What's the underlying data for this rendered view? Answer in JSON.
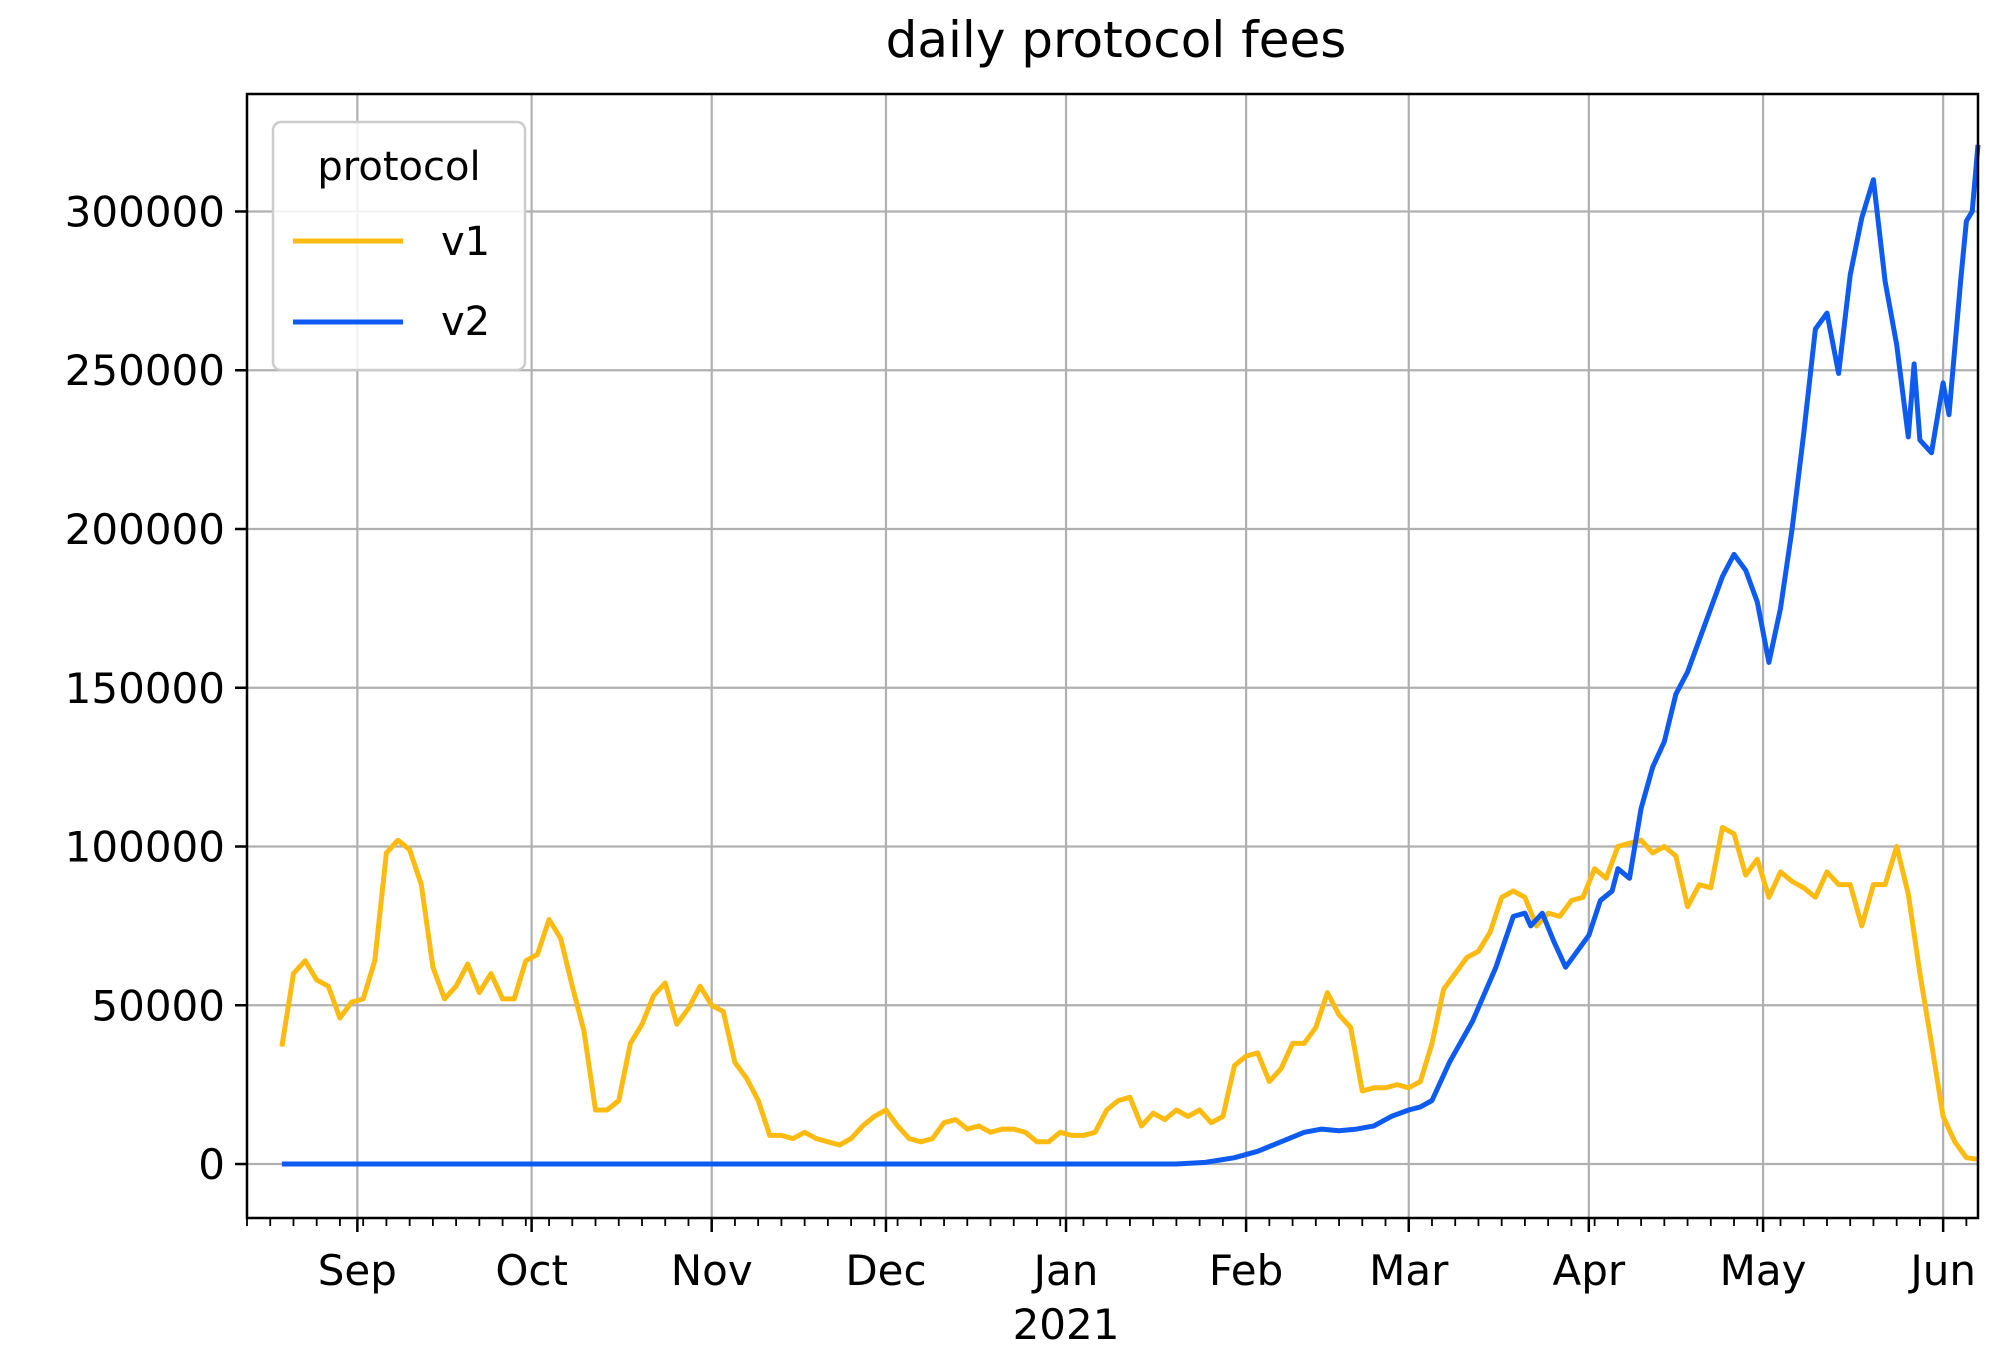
{
  "chart_data": {
    "type": "line",
    "title": "daily protocol fees",
    "xlabel": "",
    "ylabel": "",
    "x_tick_labels": [
      "Sep",
      "Oct",
      "Nov",
      "Dec",
      "Jan",
      "Feb",
      "Mar",
      "Apr",
      "May",
      "Jun"
    ],
    "x_year_label": "2021",
    "x_major_ticks": [
      "2020-09-01",
      "2020-10-01",
      "2020-11-01",
      "2020-12-01",
      "2021-01-01",
      "2021-02-01",
      "2021-03-01",
      "2021-04-01",
      "2021-05-01",
      "2021-06-01"
    ],
    "xlim": [
      "2020-08-13",
      "2021-06-07"
    ],
    "ylim": [
      -17000,
      337000
    ],
    "y_ticks": [
      0,
      50000,
      100000,
      150000,
      200000,
      250000,
      300000
    ],
    "grid": true,
    "legend": {
      "title": "protocol",
      "placement": "top-left"
    },
    "series": [
      {
        "name": "v1",
        "color": "#fdbb12",
        "points": [
          [
            "2020-08-19",
            37000
          ],
          [
            "2020-08-21",
            60000
          ],
          [
            "2020-08-23",
            64000
          ],
          [
            "2020-08-25",
            58000
          ],
          [
            "2020-08-27",
            56000
          ],
          [
            "2020-08-29",
            46000
          ],
          [
            "2020-08-31",
            51000
          ],
          [
            "2020-09-02",
            52000
          ],
          [
            "2020-09-04",
            64000
          ],
          [
            "2020-09-06",
            98000
          ],
          [
            "2020-09-08",
            102000
          ],
          [
            "2020-09-10",
            99000
          ],
          [
            "2020-09-12",
            88000
          ],
          [
            "2020-09-14",
            62000
          ],
          [
            "2020-09-16",
            52000
          ],
          [
            "2020-09-18",
            56000
          ],
          [
            "2020-09-20",
            63000
          ],
          [
            "2020-09-22",
            54000
          ],
          [
            "2020-09-24",
            60000
          ],
          [
            "2020-09-26",
            52000
          ],
          [
            "2020-09-28",
            52000
          ],
          [
            "2020-09-30",
            64000
          ],
          [
            "2020-10-02",
            66000
          ],
          [
            "2020-10-04",
            77000
          ],
          [
            "2020-10-06",
            71000
          ],
          [
            "2020-10-08",
            56000
          ],
          [
            "2020-10-10",
            42000
          ],
          [
            "2020-10-12",
            17000
          ],
          [
            "2020-10-14",
            17000
          ],
          [
            "2020-10-16",
            20000
          ],
          [
            "2020-10-18",
            38000
          ],
          [
            "2020-10-20",
            44000
          ],
          [
            "2020-10-22",
            53000
          ],
          [
            "2020-10-24",
            57000
          ],
          [
            "2020-10-26",
            44000
          ],
          [
            "2020-10-28",
            49000
          ],
          [
            "2020-10-30",
            56000
          ],
          [
            "2020-11-01",
            50000
          ],
          [
            "2020-11-03",
            48000
          ],
          [
            "2020-11-05",
            32000
          ],
          [
            "2020-11-07",
            27000
          ],
          [
            "2020-11-09",
            20000
          ],
          [
            "2020-11-11",
            9000
          ],
          [
            "2020-11-13",
            9000
          ],
          [
            "2020-11-15",
            8000
          ],
          [
            "2020-11-17",
            10000
          ],
          [
            "2020-11-19",
            8000
          ],
          [
            "2020-11-21",
            7000
          ],
          [
            "2020-11-23",
            6000
          ],
          [
            "2020-11-25",
            8000
          ],
          [
            "2020-11-27",
            12000
          ],
          [
            "2020-11-29",
            15000
          ],
          [
            "2020-12-01",
            17000
          ],
          [
            "2020-12-03",
            12000
          ],
          [
            "2020-12-05",
            8000
          ],
          [
            "2020-12-07",
            7000
          ],
          [
            "2020-12-09",
            8000
          ],
          [
            "2020-12-11",
            13000
          ],
          [
            "2020-12-13",
            14000
          ],
          [
            "2020-12-15",
            11000
          ],
          [
            "2020-12-17",
            12000
          ],
          [
            "2020-12-19",
            10000
          ],
          [
            "2020-12-21",
            11000
          ],
          [
            "2020-12-23",
            11000
          ],
          [
            "2020-12-25",
            10000
          ],
          [
            "2020-12-27",
            7000
          ],
          [
            "2020-12-29",
            7000
          ],
          [
            "2020-12-31",
            10000
          ],
          [
            "2021-01-02",
            9000
          ],
          [
            "2021-01-04",
            9000
          ],
          [
            "2021-01-06",
            10000
          ],
          [
            "2021-01-08",
            17000
          ],
          [
            "2021-01-10",
            20000
          ],
          [
            "2021-01-12",
            21000
          ],
          [
            "2021-01-14",
            12000
          ],
          [
            "2021-01-16",
            16000
          ],
          [
            "2021-01-18",
            14000
          ],
          [
            "2021-01-20",
            17000
          ],
          [
            "2021-01-22",
            15000
          ],
          [
            "2021-01-24",
            17000
          ],
          [
            "2021-01-26",
            13000
          ],
          [
            "2021-01-28",
            15000
          ],
          [
            "2021-01-30",
            31000
          ],
          [
            "2021-02-01",
            34000
          ],
          [
            "2021-02-03",
            35000
          ],
          [
            "2021-02-05",
            26000
          ],
          [
            "2021-02-07",
            30000
          ],
          [
            "2021-02-09",
            38000
          ],
          [
            "2021-02-11",
            38000
          ],
          [
            "2021-02-13",
            43000
          ],
          [
            "2021-02-15",
            54000
          ],
          [
            "2021-02-17",
            47000
          ],
          [
            "2021-02-19",
            43000
          ],
          [
            "2021-02-21",
            23000
          ],
          [
            "2021-02-23",
            24000
          ],
          [
            "2021-02-25",
            24000
          ],
          [
            "2021-02-27",
            25000
          ],
          [
            "2021-03-01",
            24000
          ],
          [
            "2021-03-03",
            26000
          ],
          [
            "2021-03-05",
            38000
          ],
          [
            "2021-03-07",
            55000
          ],
          [
            "2021-03-09",
            60000
          ],
          [
            "2021-03-11",
            65000
          ],
          [
            "2021-03-13",
            67000
          ],
          [
            "2021-03-15",
            73000
          ],
          [
            "2021-03-17",
            84000
          ],
          [
            "2021-03-19",
            86000
          ],
          [
            "2021-03-21",
            84000
          ],
          [
            "2021-03-23",
            75000
          ],
          [
            "2021-03-25",
            79000
          ],
          [
            "2021-03-27",
            78000
          ],
          [
            "2021-03-29",
            83000
          ],
          [
            "2021-03-31",
            84000
          ],
          [
            "2021-04-02",
            93000
          ],
          [
            "2021-04-04",
            90000
          ],
          [
            "2021-04-06",
            100000
          ],
          [
            "2021-04-08",
            101000
          ],
          [
            "2021-04-10",
            102000
          ],
          [
            "2021-04-12",
            98000
          ],
          [
            "2021-04-14",
            100000
          ],
          [
            "2021-04-16",
            97000
          ],
          [
            "2021-04-18",
            81000
          ],
          [
            "2021-04-20",
            88000
          ],
          [
            "2021-04-22",
            87000
          ],
          [
            "2021-04-24",
            106000
          ],
          [
            "2021-04-26",
            104000
          ],
          [
            "2021-04-28",
            91000
          ],
          [
            "2021-04-30",
            96000
          ],
          [
            "2021-05-02",
            84000
          ],
          [
            "2021-05-04",
            92000
          ],
          [
            "2021-05-06",
            89000
          ],
          [
            "2021-05-08",
            87000
          ],
          [
            "2021-05-10",
            84000
          ],
          [
            "2021-05-12",
            92000
          ],
          [
            "2021-05-14",
            88000
          ],
          [
            "2021-05-16",
            88000
          ],
          [
            "2021-05-18",
            75000
          ],
          [
            "2021-05-20",
            88000
          ],
          [
            "2021-05-22",
            88000
          ],
          [
            "2021-05-24",
            100000
          ],
          [
            "2021-05-26",
            85000
          ],
          [
            "2021-05-28",
            60000
          ],
          [
            "2021-05-30",
            38000
          ],
          [
            "2021-06-01",
            15000
          ],
          [
            "2021-06-03",
            7000
          ],
          [
            "2021-06-05",
            2000
          ],
          [
            "2021-06-07",
            1500
          ]
        ]
      },
      {
        "name": "v2",
        "color": "#0d5bf0",
        "points": [
          [
            "2020-08-19",
            0
          ],
          [
            "2021-01-20",
            0
          ],
          [
            "2021-01-25",
            500
          ],
          [
            "2021-01-30",
            2000
          ],
          [
            "2021-02-03",
            4000
          ],
          [
            "2021-02-07",
            7000
          ],
          [
            "2021-02-11",
            10000
          ],
          [
            "2021-02-14",
            11000
          ],
          [
            "2021-02-17",
            10500
          ],
          [
            "2021-02-20",
            11000
          ],
          [
            "2021-02-23",
            12000
          ],
          [
            "2021-02-26",
            15000
          ],
          [
            "2021-03-01",
            17000
          ],
          [
            "2021-03-03",
            18000
          ],
          [
            "2021-03-05",
            20000
          ],
          [
            "2021-03-08",
            32000
          ],
          [
            "2021-03-12",
            45000
          ],
          [
            "2021-03-16",
            62000
          ],
          [
            "2021-03-19",
            78000
          ],
          [
            "2021-03-21",
            79000
          ],
          [
            "2021-03-22",
            75000
          ],
          [
            "2021-03-24",
            79000
          ],
          [
            "2021-03-26",
            70000
          ],
          [
            "2021-03-28",
            62000
          ],
          [
            "2021-03-30",
            67000
          ],
          [
            "2021-04-01",
            72000
          ],
          [
            "2021-04-03",
            83000
          ],
          [
            "2021-04-05",
            86000
          ],
          [
            "2021-04-06",
            93000
          ],
          [
            "2021-04-08",
            90000
          ],
          [
            "2021-04-10",
            112000
          ],
          [
            "2021-04-12",
            125000
          ],
          [
            "2021-04-14",
            133000
          ],
          [
            "2021-04-16",
            148000
          ],
          [
            "2021-04-18",
            155000
          ],
          [
            "2021-04-20",
            165000
          ],
          [
            "2021-04-22",
            175000
          ],
          [
            "2021-04-24",
            185000
          ],
          [
            "2021-04-26",
            192000
          ],
          [
            "2021-04-28",
            187000
          ],
          [
            "2021-04-30",
            177000
          ],
          [
            "2021-05-02",
            158000
          ],
          [
            "2021-05-04",
            175000
          ],
          [
            "2021-05-06",
            200000
          ],
          [
            "2021-05-08",
            230000
          ],
          [
            "2021-05-10",
            263000
          ],
          [
            "2021-05-12",
            268000
          ],
          [
            "2021-05-14",
            249000
          ],
          [
            "2021-05-16",
            280000
          ],
          [
            "2021-05-18",
            298000
          ],
          [
            "2021-05-20",
            310000
          ],
          [
            "2021-05-22",
            278000
          ],
          [
            "2021-05-24",
            258000
          ],
          [
            "2021-05-26",
            229000
          ],
          [
            "2021-05-27",
            252000
          ],
          [
            "2021-05-28",
            228000
          ],
          [
            "2021-05-30",
            224000
          ],
          [
            "2021-06-01",
            246000
          ],
          [
            "2021-06-02",
            236000
          ],
          [
            "2021-06-04",
            278000
          ],
          [
            "2021-06-05",
            297000
          ],
          [
            "2021-06-06",
            300000
          ],
          [
            "2021-06-07",
            321000
          ]
        ]
      }
    ]
  }
}
